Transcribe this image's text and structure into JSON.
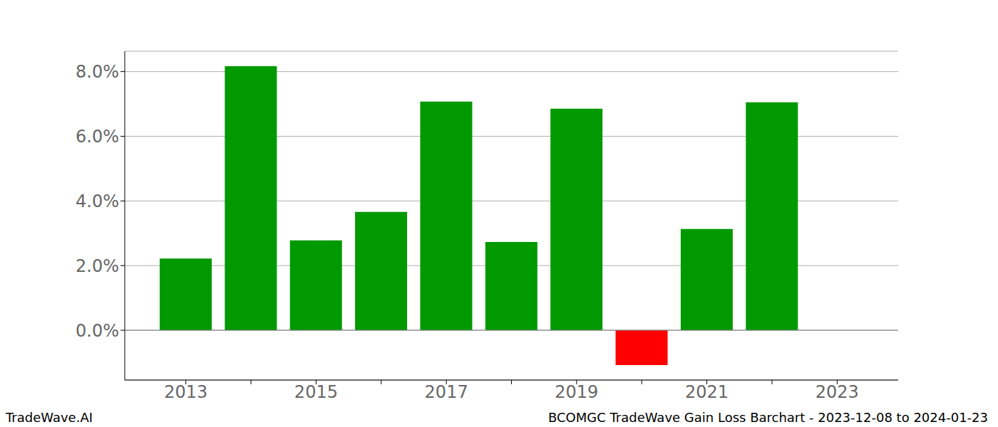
{
  "chart_data": {
    "type": "bar",
    "title": "BCOMGC TradeWave Gain Loss Barchart - 2023-12-08 to 2024-01-23",
    "annotations": [
      "TradeWave.AI"
    ],
    "categories": [
      "2013",
      null,
      "2015",
      null,
      "2017",
      null,
      "2019",
      null,
      "2021",
      null,
      "2023"
    ],
    "values": [
      2.22,
      8.17,
      2.78,
      3.66,
      7.07,
      2.73,
      6.85,
      -1.08,
      3.13,
      7.05,
      null
    ],
    "colors": [
      "#009900",
      "#009900",
      "#009900",
      "#009900",
      "#009900",
      "#009900",
      "#009900",
      "#ff0000",
      "#009900",
      "#009900",
      "#009900"
    ],
    "ylim": [
      -1.54,
      8.63
    ],
    "yticks": [
      {
        "value": 0,
        "label": "0.0%"
      },
      {
        "value": 2,
        "label": "2.0%"
      },
      {
        "value": 4,
        "label": "4.0%"
      },
      {
        "value": 6,
        "label": "6.0%"
      },
      {
        "value": 8,
        "label": "8.0%"
      }
    ],
    "grid": true
  }
}
